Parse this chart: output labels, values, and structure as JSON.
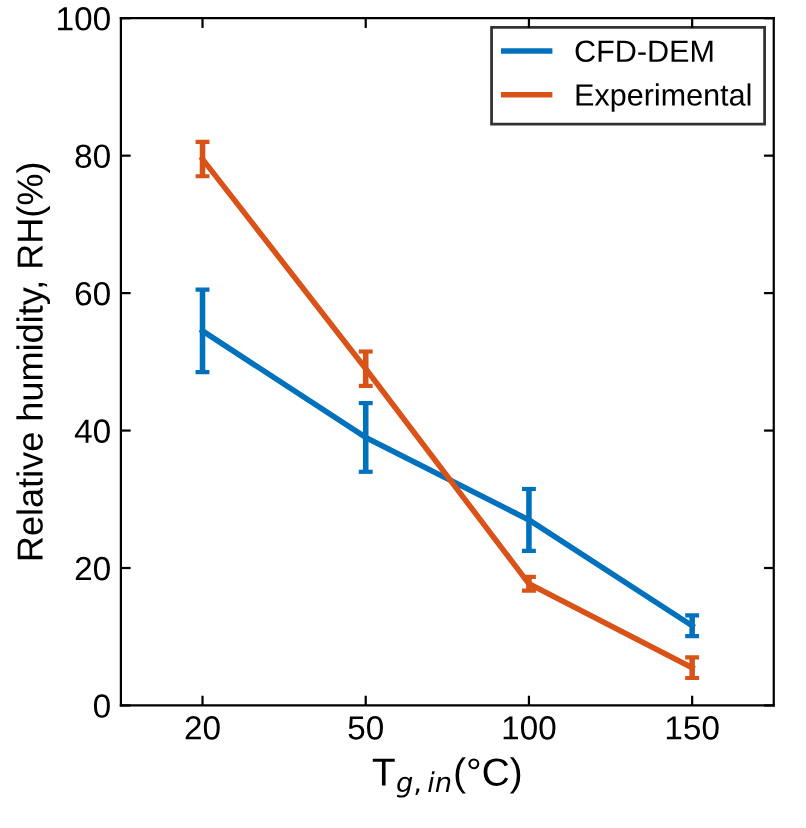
{
  "chart_data": {
    "type": "line",
    "xlabel": "T$_{g,in}$(°C)",
    "ylabel": "Relative humidity, RH(%)",
    "categories": [
      "20",
      "50",
      "100",
      "150"
    ],
    "series": [
      {
        "name": "CFD-DEM",
        "color": "#0072bd",
        "values": [
          54.5,
          39,
          27,
          11.6
        ],
        "errors": [
          6,
          5,
          4.5,
          1.5
        ]
      },
      {
        "name": "Experimental",
        "color": "#d95319",
        "values": [
          79.5,
          49,
          17.7,
          5.5
        ],
        "errors": [
          2.5,
          2.5,
          1,
          1.5
        ]
      }
    ],
    "ylim": [
      0,
      100
    ],
    "yticks": [
      0,
      20,
      40,
      60,
      80,
      100
    ],
    "legend": "top right",
    "grid": false,
    "marker": "none",
    "line_style": "solid"
  }
}
